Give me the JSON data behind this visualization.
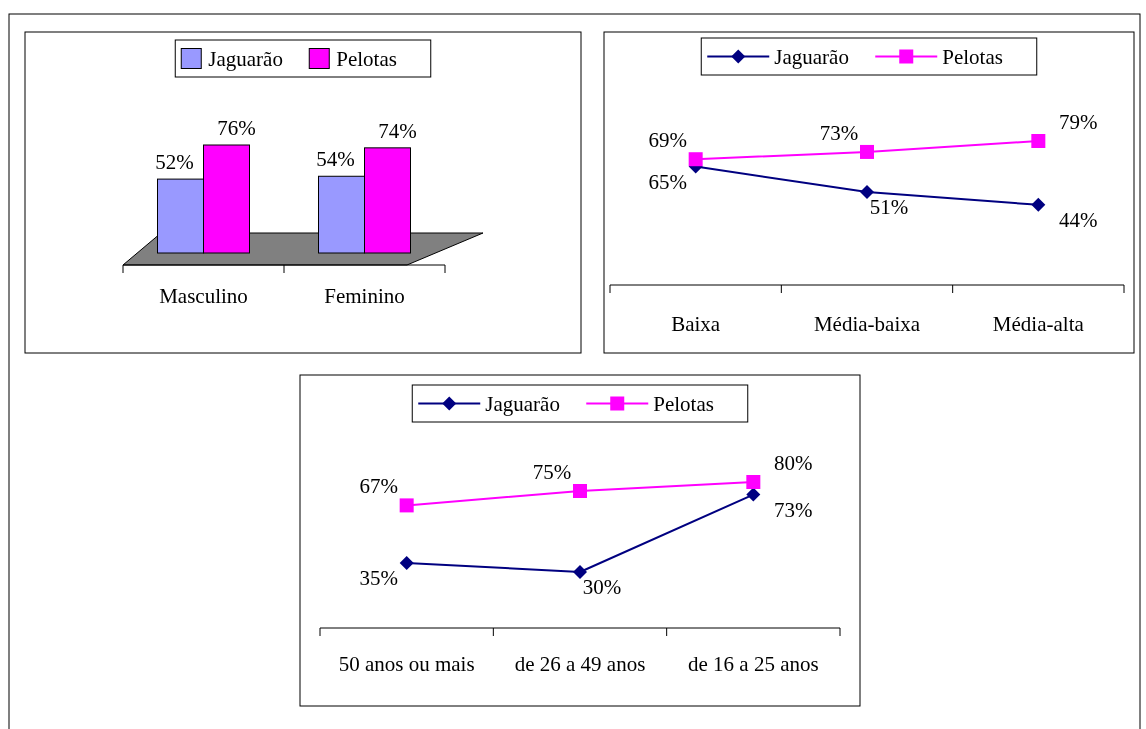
{
  "chart_data": [
    {
      "type": "bar",
      "categories": [
        "Masculino",
        "Feminino"
      ],
      "legend": "top",
      "series": [
        {
          "name": "Jaguarão",
          "color": "#9999ff",
          "values": [
            52,
            54
          ],
          "value_labels": [
            "52%",
            "54%"
          ]
        },
        {
          "name": "Pelotas",
          "color": "#ff00ff",
          "values": [
            76,
            74
          ],
          "value_labels": [
            "76%",
            "74%"
          ]
        }
      ]
    },
    {
      "type": "line",
      "categories": [
        "Baixa",
        "Média-baixa",
        "Média-alta"
      ],
      "legend": "top",
      "series": [
        {
          "name": "Jaguarão",
          "color": "#000080",
          "marker": "diamond",
          "values": [
            65,
            51,
            44
          ],
          "value_labels": [
            "65%",
            "51%",
            "44%"
          ]
        },
        {
          "name": "Pelotas",
          "color": "#ff00ff",
          "marker": "square",
          "values": [
            69,
            73,
            79
          ],
          "value_labels": [
            "69%",
            "73%",
            "79%"
          ]
        }
      ]
    },
    {
      "type": "line",
      "categories": [
        "50 anos ou mais",
        "de 26 a 49 anos",
        "de 16 a 25 anos"
      ],
      "legend": "top",
      "series": [
        {
          "name": "Jaguarão",
          "color": "#000080",
          "marker": "diamond",
          "values": [
            35,
            30,
            73
          ],
          "value_labels": [
            "35%",
            "30%",
            "73%"
          ]
        },
        {
          "name": "Pelotas",
          "color": "#ff00ff",
          "marker": "square",
          "values": [
            67,
            75,
            80
          ],
          "value_labels": [
            "67%",
            "75%",
            "80%"
          ]
        }
      ]
    }
  ]
}
